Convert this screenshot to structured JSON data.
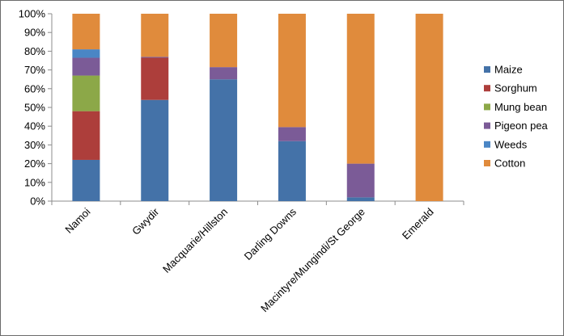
{
  "chart_data": {
    "type": "bar",
    "stacked": true,
    "title": "",
    "xlabel": "",
    "ylabel": "",
    "ylim": [
      0,
      100
    ],
    "y_ticks": [
      "0%",
      "10%",
      "20%",
      "30%",
      "40%",
      "50%",
      "60%",
      "70%",
      "80%",
      "90%",
      "100%"
    ],
    "grid": false,
    "legend_position": "right",
    "categories": [
      "Namoi",
      "Gwydir",
      "Macquarie/Hillston",
      "Darling Downs",
      "Macintyre/Mungindi/St George",
      "Emerald"
    ],
    "series": [
      {
        "name": "Maize",
        "color": "#4472A8",
        "values": [
          22,
          54,
          65,
          32,
          2,
          0
        ]
      },
      {
        "name": "Sorghum",
        "color": "#AD3E3B",
        "values": [
          26,
          22.5,
          0,
          0,
          0,
          0
        ]
      },
      {
        "name": "Mung bean",
        "color": "#8CA848",
        "values": [
          19,
          0,
          0,
          0,
          0,
          0
        ]
      },
      {
        "name": "Pigeon pea",
        "color": "#7B5B97",
        "values": [
          9.5,
          0.5,
          6.5,
          7.5,
          18,
          0
        ]
      },
      {
        "name": "Weeds",
        "color": "#4A86C5",
        "values": [
          4.5,
          0,
          0,
          0,
          0,
          0
        ]
      },
      {
        "name": "Cotton",
        "color": "#E08B3C",
        "values": [
          19,
          23,
          28.5,
          60.5,
          80,
          100
        ]
      }
    ],
    "legend_order": [
      "Cotton",
      "Weeds",
      "Pigeon pea",
      "Mung bean",
      "Sorghum",
      "Maize"
    ]
  }
}
